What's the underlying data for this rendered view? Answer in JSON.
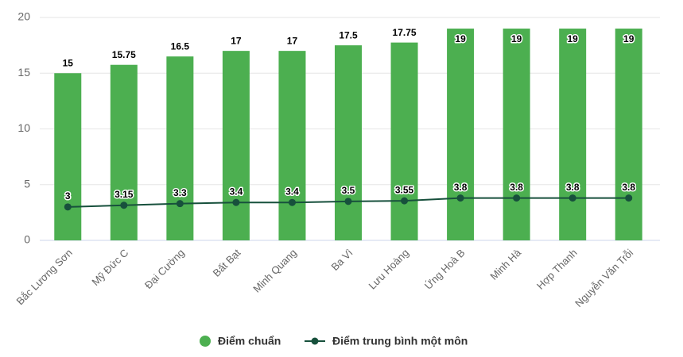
{
  "chart_data": {
    "type": "bar_line",
    "categories": [
      "Bắc Lương Sơn",
      "Mỹ Đức C",
      "Đại Cường",
      "Bất Bạt",
      "Minh Quang",
      "Ba Vì",
      "Lưu Hoàng",
      "Ứng Hoà B",
      "Minh Hà",
      "Hợp Thanh",
      "Nguyễn Văn Trỗi"
    ],
    "series": [
      {
        "name": "Điểm chuẩn",
        "type": "bar",
        "color": "#4caf50",
        "values": [
          15,
          15.75,
          16.5,
          17,
          17,
          17.5,
          17.75,
          19,
          19,
          19,
          19
        ]
      },
      {
        "name": "Điểm trung bình một môn",
        "type": "line",
        "color": "#17503c",
        "values": [
          3,
          3.15,
          3.3,
          3.4,
          3.4,
          3.5,
          3.55,
          3.8,
          3.8,
          3.8,
          3.8
        ]
      }
    ],
    "ylim": [
      0,
      20
    ],
    "yticks": [
      0,
      5,
      10,
      15,
      20
    ],
    "grid": true
  }
}
